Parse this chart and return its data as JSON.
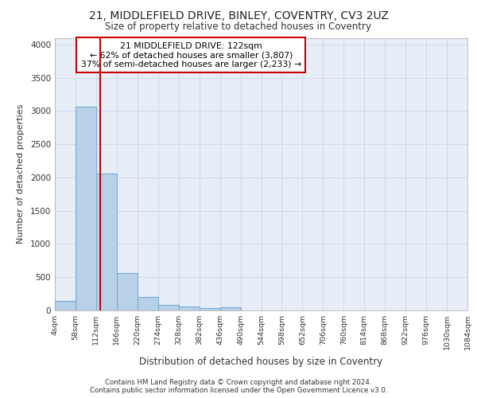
{
  "title1": "21, MIDDLEFIELD DRIVE, BINLEY, COVENTRY, CV3 2UZ",
  "title2": "Size of property relative to detached houses in Coventry",
  "xlabel": "Distribution of detached houses by size in Coventry",
  "ylabel": "Number of detached properties",
  "property_size": 122,
  "annotation_line1": "21 MIDDLEFIELD DRIVE: 122sqm",
  "annotation_line2": "← 62% of detached houses are smaller (3,807)",
  "annotation_line3": "37% of semi-detached houses are larger (2,233) →",
  "bin_edges": [
    4,
    58,
    112,
    166,
    220,
    274,
    328,
    382,
    436,
    490,
    544,
    598,
    652,
    706,
    760,
    814,
    868,
    922,
    976,
    1030,
    1084
  ],
  "bin_counts": [
    140,
    3060,
    2060,
    565,
    200,
    85,
    55,
    40,
    50,
    0,
    0,
    0,
    0,
    0,
    0,
    0,
    0,
    0,
    0,
    0
  ],
  "bar_facecolor": "#b8d0e8",
  "bar_edgecolor": "#7aadd4",
  "vline_x": 122,
  "vline_color": "#cc0000",
  "annotation_box_edgecolor": "#cc0000",
  "annotation_box_facecolor": "#ffffff",
  "grid_color": "#d0d8e8",
  "bg_color": "#e8eef8",
  "ylim": [
    0,
    4100
  ],
  "yticks": [
    0,
    500,
    1000,
    1500,
    2000,
    2500,
    3000,
    3500,
    4000
  ],
  "footnote1": "Contains HM Land Registry data © Crown copyright and database right 2024.",
  "footnote2": "Contains public sector information licensed under the Open Government Licence v3.0."
}
